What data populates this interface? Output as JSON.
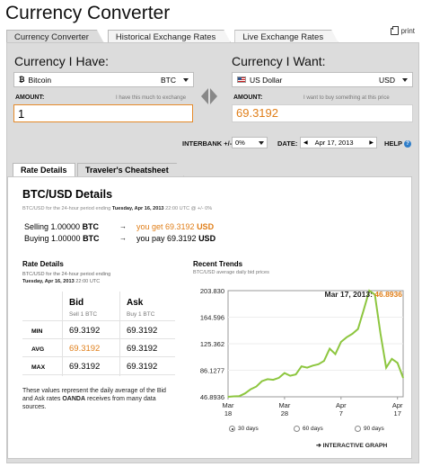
{
  "page_title": "Currency Converter",
  "print_label": "print",
  "main_tabs": [
    {
      "label": "Currency Converter"
    },
    {
      "label": "Historical Exchange Rates"
    },
    {
      "label": "Live Exchange Rates"
    }
  ],
  "have": {
    "heading": "Currency I Have:",
    "currency_name": "Bitcoin",
    "currency_code": "BTC",
    "icon": "bitcoin-icon",
    "amount_label": "AMOUNT:",
    "amount_hint": "I have this much to exchange",
    "amount_value": "1"
  },
  "want": {
    "heading": "Currency I Want:",
    "currency_name": "US Dollar",
    "currency_code": "USD",
    "icon": "us-flag-icon",
    "amount_label": "AMOUNT:",
    "amount_hint": "I want to buy something at this price",
    "amount_value": "69.3192"
  },
  "options": {
    "interbank_label": "INTERBANK +/-",
    "interbank_value": "0%",
    "date_label": "DATE:",
    "date_value": "Apr 17, 2013",
    "help_label": "HELP"
  },
  "detail_tabs": [
    {
      "label": "Rate Details"
    },
    {
      "label": "Traveler's Cheatsheet"
    }
  ],
  "details": {
    "title": "BTC/USD Details",
    "subtitle_pre": "BTC/USD for the 24-hour period ending ",
    "subtitle_date": "Tuesday, Apr 16, 2013",
    "subtitle_post": " 22:00 UTC @ +/- 0%",
    "selling": {
      "prefix": "Selling 1.00000 ",
      "code": "BTC",
      "arrow": "→",
      "result_pre": "you get 69.3192 ",
      "result_code": "USD"
    },
    "buying": {
      "prefix": "Buying 1.00000 ",
      "code": "BTC",
      "arrow": "→",
      "result_pre": "you pay 69.3192 ",
      "result_code": "USD"
    }
  },
  "rate_details": {
    "title": "Rate Details",
    "sub_line1": "BTC/USD for the 24-hour period ending",
    "sub_date": "Tuesday, Apr 16, 2013",
    "sub_time": " 22:00 UTC",
    "bid_head": "Bid",
    "bid_sub": "Sell 1 BTC",
    "ask_head": "Ask",
    "ask_sub": "Buy 1 BTC",
    "rows": [
      {
        "label": "MIN",
        "bid": "69.3192",
        "ask": "69.3192"
      },
      {
        "label": "AVG",
        "bid": "69.3192",
        "ask": "69.3192"
      },
      {
        "label": "MAX",
        "bid": "69.3192",
        "ask": "69.3192"
      }
    ],
    "note_pre": "These values represent the daily average of the Bid and Ask rates ",
    "note_brand": "OANDA",
    "note_post": " receives from many data sources."
  },
  "trends": {
    "title": "Recent Trends",
    "subtitle": "BTC/USD average daily bid prices",
    "radios": [
      {
        "label": "30 days",
        "checked": true
      },
      {
        "label": "60 days",
        "checked": false
      },
      {
        "label": "90 days",
        "checked": false
      }
    ],
    "interactive_label": "INTERACTIVE GRAPH",
    "interactive_arrow": "➔"
  },
  "chart_data": {
    "type": "line",
    "ylim": [
      46.8936,
      203.83
    ],
    "y_ticks": [
      "203.830",
      "164.596",
      "125.362",
      "86.1277",
      "46.8936"
    ],
    "x_ticks": [
      {
        "month": "Mar",
        "day": "18",
        "i": 0
      },
      {
        "month": "Mar",
        "day": "28",
        "i": 10
      },
      {
        "month": "Apr",
        "day": "7",
        "i": 20
      },
      {
        "month": "Apr",
        "day": "17",
        "i": 30
      }
    ],
    "highlight": {
      "date": "Mar 17, 2013:",
      "value": "46.8936"
    },
    "series": [
      {
        "values": [
          46.9,
          47.5,
          48.0,
          52.0,
          58.0,
          62.0,
          70.0,
          73.0,
          72.0,
          75.0,
          82.0,
          78.0,
          80.0,
          92.0,
          90.0,
          93.0,
          95.0,
          100.0,
          118.0,
          110.0,
          128.0,
          135.0,
          140.0,
          147.0,
          175.0,
          203.8,
          198.0,
          140.0,
          90.0,
          103.0,
          97.0,
          75.0
        ]
      }
    ],
    "line_color": "#8dc63f"
  }
}
